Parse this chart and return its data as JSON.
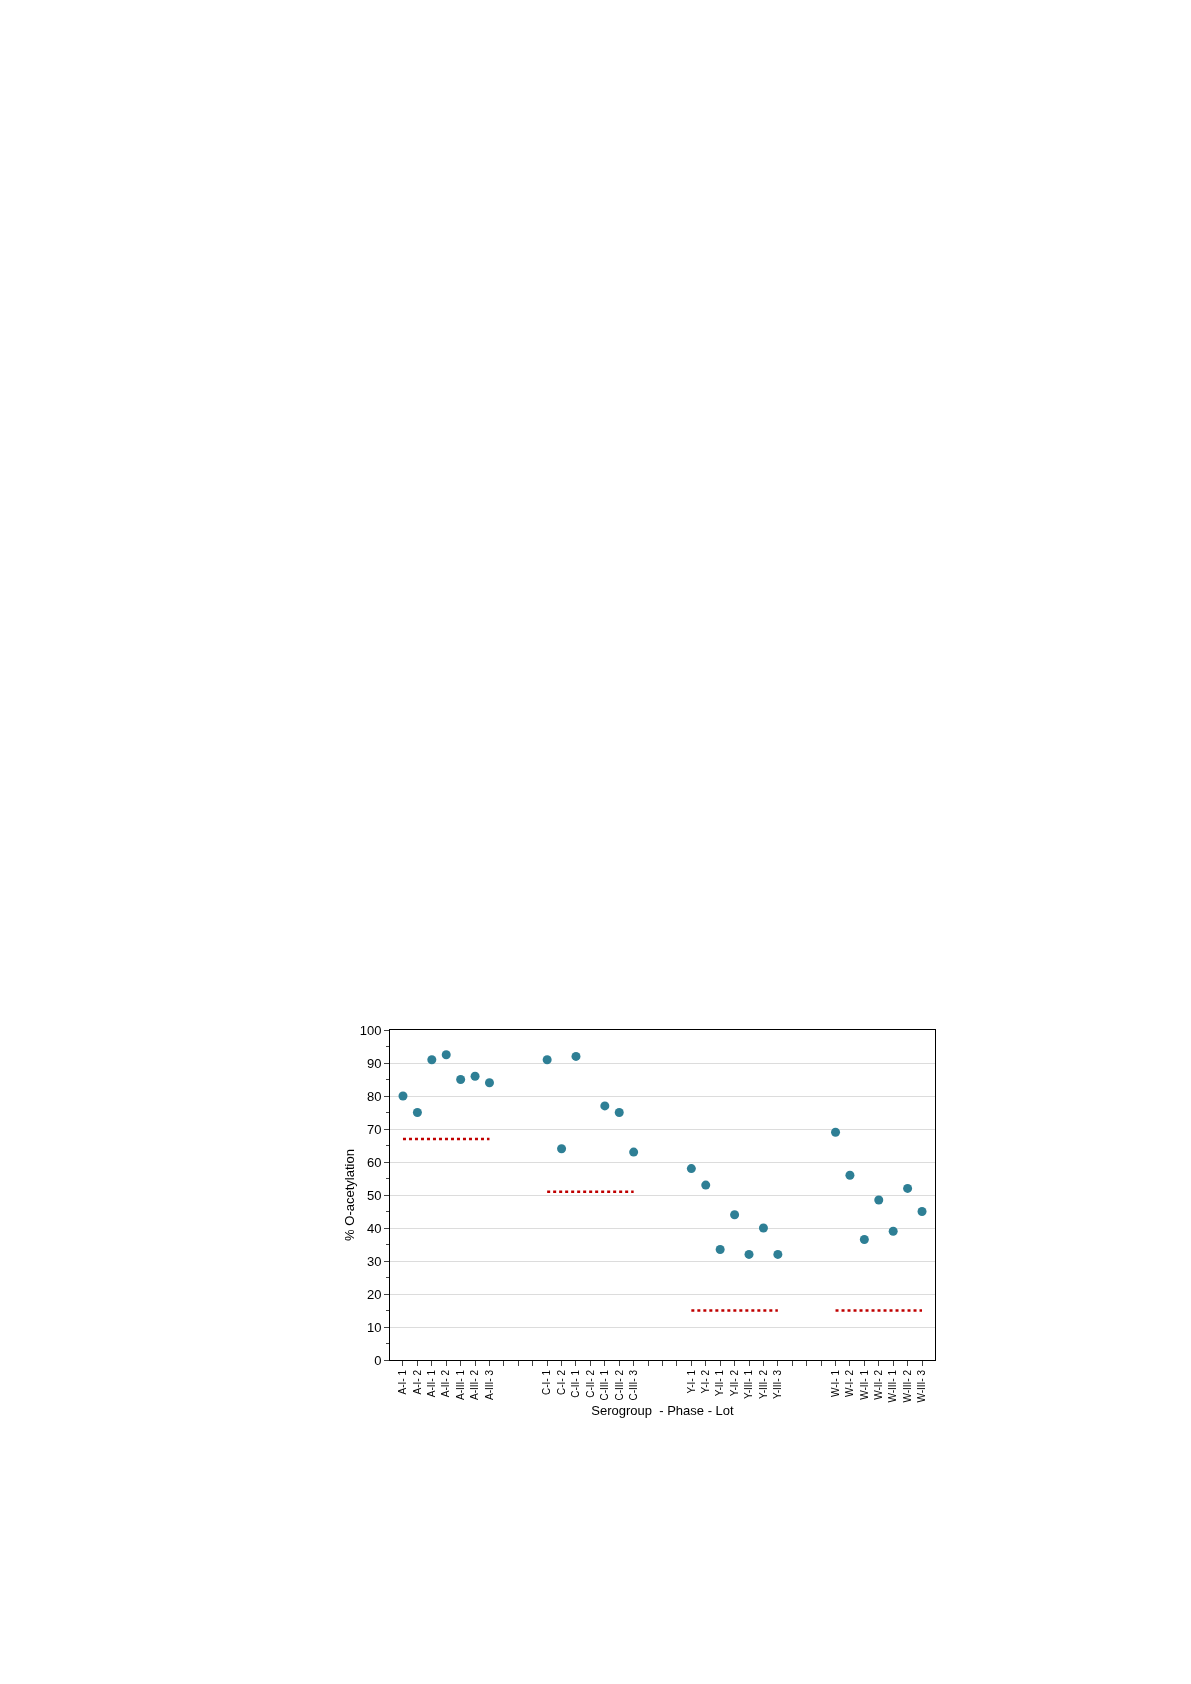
{
  "chart_data": {
    "type": "scatter",
    "xlabel": "Serogroup  - Phase - Lot",
    "ylabel": "% O-acetylation",
    "categories": [
      "A-I- 1",
      "A-I- 2",
      "A-II- 1",
      "A-II- 2",
      "A-III- 1",
      "A-III- 2",
      "A-III- 3",
      null,
      null,
      null,
      "C-I- 1",
      "C-I- 2",
      "C-II- 1",
      "C-II- 2",
      "C-III- 1",
      "C-III- 2",
      "C-III- 3",
      null,
      null,
      null,
      "Y-I- 1",
      "Y-I- 2",
      "Y-II- 1",
      "Y-II- 2",
      "Y-III- 1",
      "Y-III- 2",
      "Y-III- 3",
      null,
      null,
      null,
      "W-I- 1",
      "W-I- 2",
      "W-II- 1",
      "W-II- 2",
      "W-III- 1",
      "W-III- 2",
      "W-III- 3"
    ],
    "series": [
      {
        "color": "#2e7f95",
        "marker": "circle",
        "values": [
          80,
          75,
          91,
          92.5,
          85,
          86,
          84,
          null,
          null,
          null,
          91,
          64,
          92,
          null,
          77,
          75,
          63,
          null,
          null,
          null,
          58,
          53,
          33.5,
          44,
          32,
          40,
          32,
          null,
          null,
          null,
          69,
          56,
          36.5,
          48.5,
          39,
          52,
          45
        ]
      },
      {
        "type": "line",
        "color": "#c00000",
        "line_style": "dotted",
        "marker": "none",
        "values": [
          67,
          67,
          67,
          67,
          67,
          67,
          67,
          null,
          null,
          null,
          51,
          51,
          51,
          51,
          51,
          51,
          51,
          null,
          null,
          null,
          15,
          15,
          15,
          15,
          15,
          15,
          15,
          null,
          null,
          null,
          15,
          15,
          15,
          15,
          15,
          15,
          15
        ]
      }
    ],
    "ylim": [
      0,
      100
    ],
    "yticks": [
      0,
      10,
      20,
      30,
      40,
      50,
      60,
      70,
      80,
      90,
      100
    ],
    "grid": "y"
  }
}
